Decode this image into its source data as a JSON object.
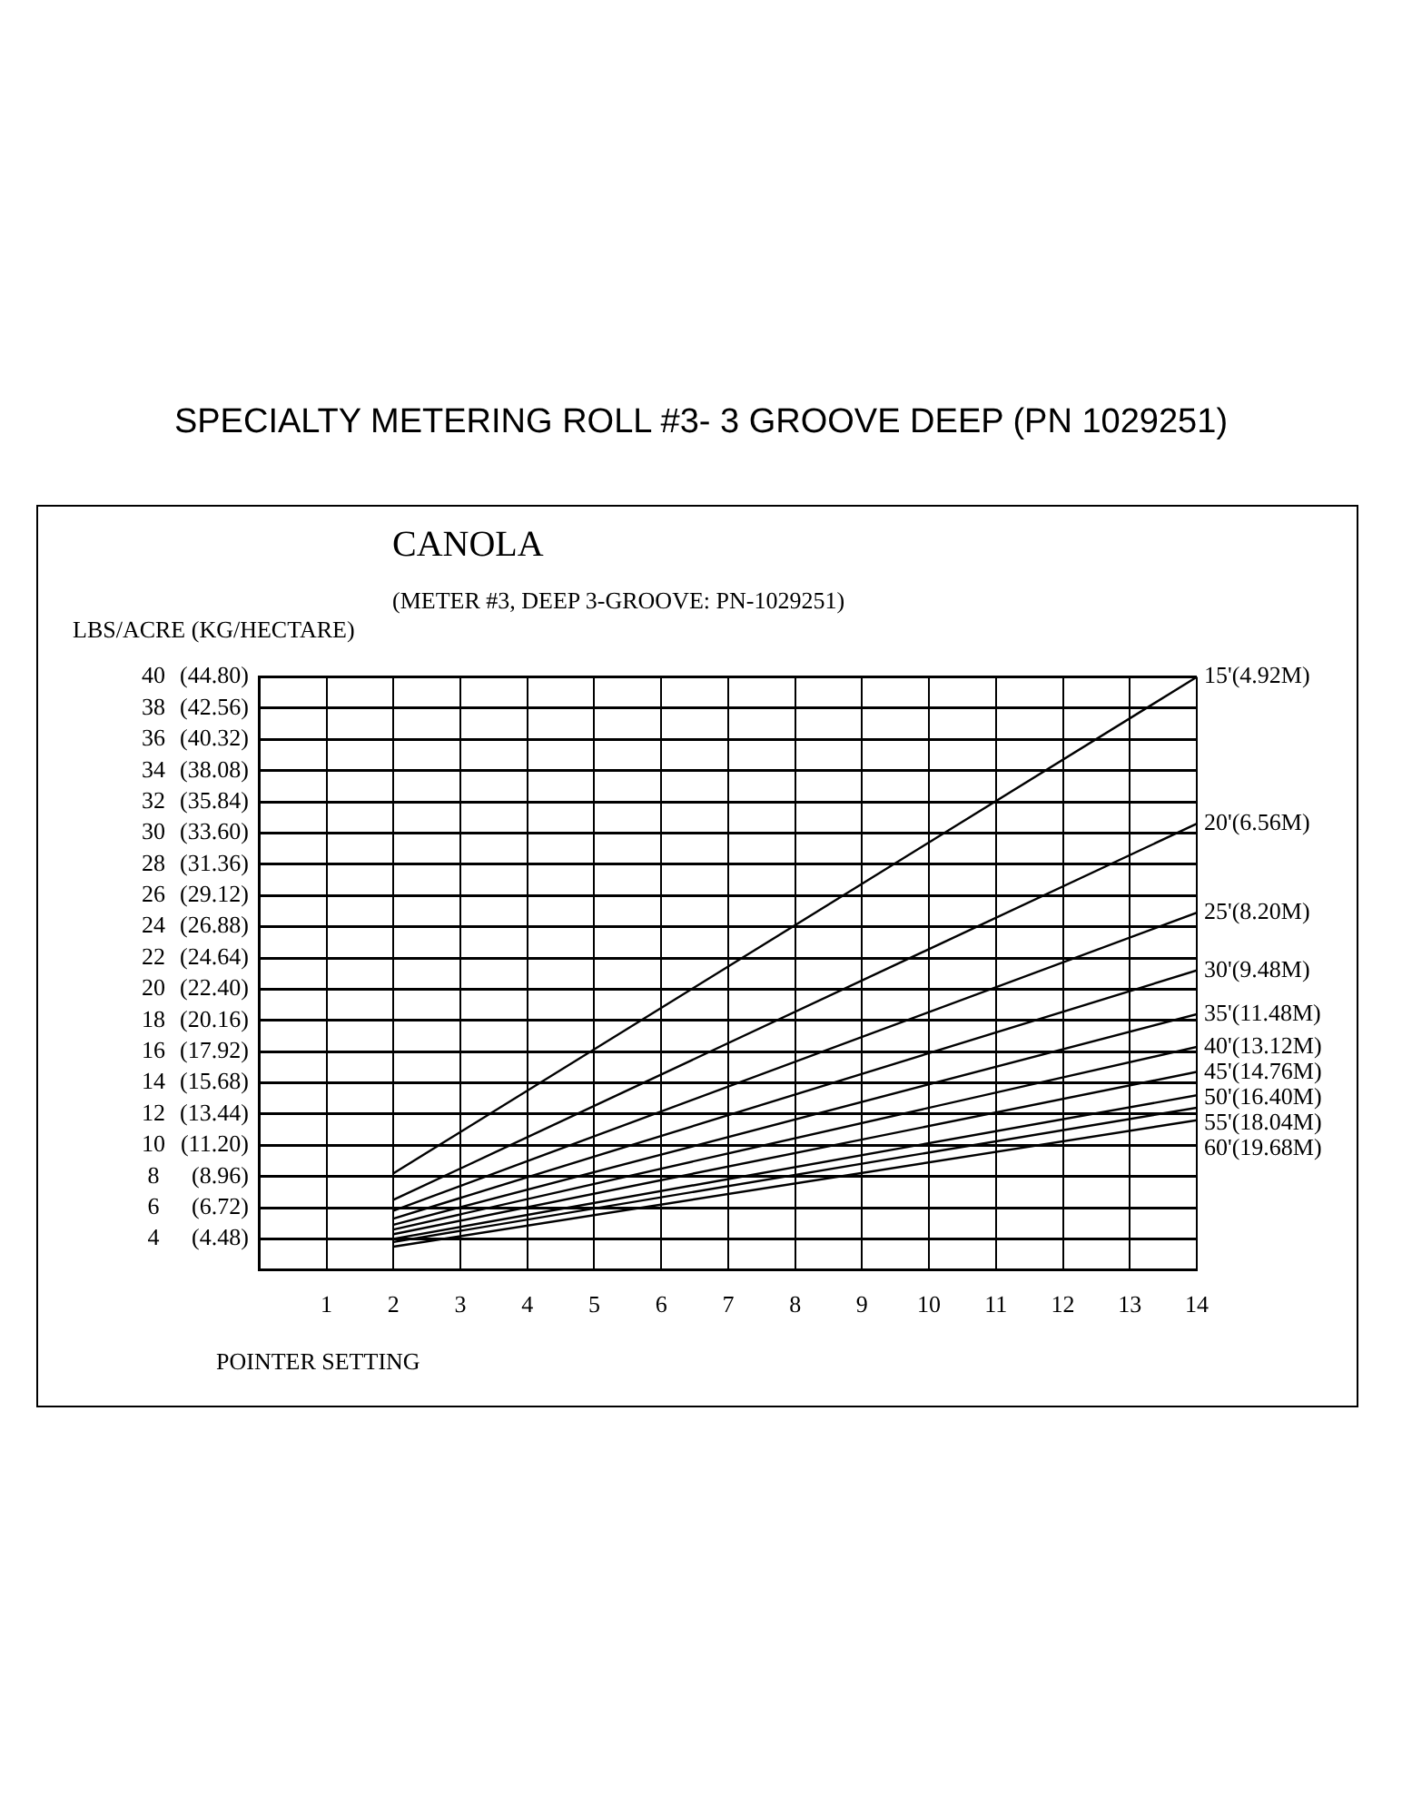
{
  "chart_data": {
    "type": "line",
    "title": "SPECIALTY METERING ROLL #3- 3 GROOVE DEEP (PN  1029251)",
    "subtitle": "CANOLA",
    "annotations": [
      "(METER #3, DEEP 3-GROOVE: PN-1029251)"
    ],
    "xlabel": "POINTER SETTING",
    "ylabel": "LBS/ACRE",
    "y2label": "(KG/HECTARE)",
    "x": [
      2,
      14
    ],
    "series": [
      {
        "name": "15'(4.92M)",
        "color": "#000000",
        "values": [
          8.2,
          40
        ]
      },
      {
        "name": "20'(6.56M)",
        "color": "#000000",
        "values": [
          6.5,
          30.6
        ]
      },
      {
        "name": "25'(8.20M)",
        "color": "#000000",
        "values": [
          5.8,
          24.9
        ]
      },
      {
        "name": "30'(9.48M)",
        "color": "#000000",
        "values": [
          5.3,
          21.2
        ]
      },
      {
        "name": "35'(11.48M)",
        "color": "#000000",
        "values": [
          4.9,
          18.4
        ]
      },
      {
        "name": "40'(13.12M)",
        "color": "#000000",
        "values": [
          4.6,
          16.3
        ]
      },
      {
        "name": "45'(14.76M)",
        "color": "#000000",
        "values": [
          4.3,
          14.7
        ]
      },
      {
        "name": "50'(16.40M)",
        "color": "#000000",
        "values": [
          4.0,
          13.2
        ]
      },
      {
        "name": "55'(18.04M)",
        "color": "#000000",
        "values": [
          3.8,
          12.4
        ]
      },
      {
        "name": "60'(19.68M)",
        "color": "#000000",
        "values": [
          3.5,
          11.6
        ]
      }
    ],
    "xlim": [
      0,
      14
    ],
    "xticks": [
      1,
      2,
      3,
      4,
      5,
      6,
      7,
      8,
      9,
      10,
      11,
      12,
      13,
      14
    ],
    "ylim": [
      2,
      40
    ],
    "yticks": [
      4,
      6,
      8,
      10,
      12,
      14,
      16,
      18,
      20,
      22,
      24,
      26,
      28,
      30,
      32,
      34,
      36,
      38,
      40
    ],
    "y2lim": [
      2.24,
      44.8
    ],
    "y2ticks": [
      {
        "value": 4.48,
        "label": "(4.48)"
      },
      {
        "value": 6.72,
        "label": "(6.72)"
      },
      {
        "value": 8.96,
        "label": "(8.96)"
      },
      {
        "value": 11.2,
        "label": "(11.20)"
      },
      {
        "value": 13.44,
        "label": "(13.44)"
      },
      {
        "value": 15.68,
        "label": "(15.68)"
      },
      {
        "value": 17.92,
        "label": "(17.92)"
      },
      {
        "value": 20.16,
        "label": "(20.16)"
      },
      {
        "value": 22.4,
        "label": "(22.40)"
      },
      {
        "value": 24.64,
        "label": "(24.64)"
      },
      {
        "value": 26.88,
        "label": "(26.88)"
      },
      {
        "value": 29.12,
        "label": "(29.12)"
      },
      {
        "value": 31.36,
        "label": "(31.36)"
      },
      {
        "value": 33.6,
        "label": "(33.60)"
      },
      {
        "value": 35.84,
        "label": "(35.84)"
      },
      {
        "value": 38.08,
        "label": "(38.08)"
      },
      {
        "value": 40.32,
        "label": "(40.32)"
      },
      {
        "value": 42.56,
        "label": "(42.56)"
      },
      {
        "value": 44.8,
        "label": "(44.80)"
      }
    ],
    "grid": true,
    "legend": false,
    "marker": "none",
    "line_style": "solid"
  }
}
